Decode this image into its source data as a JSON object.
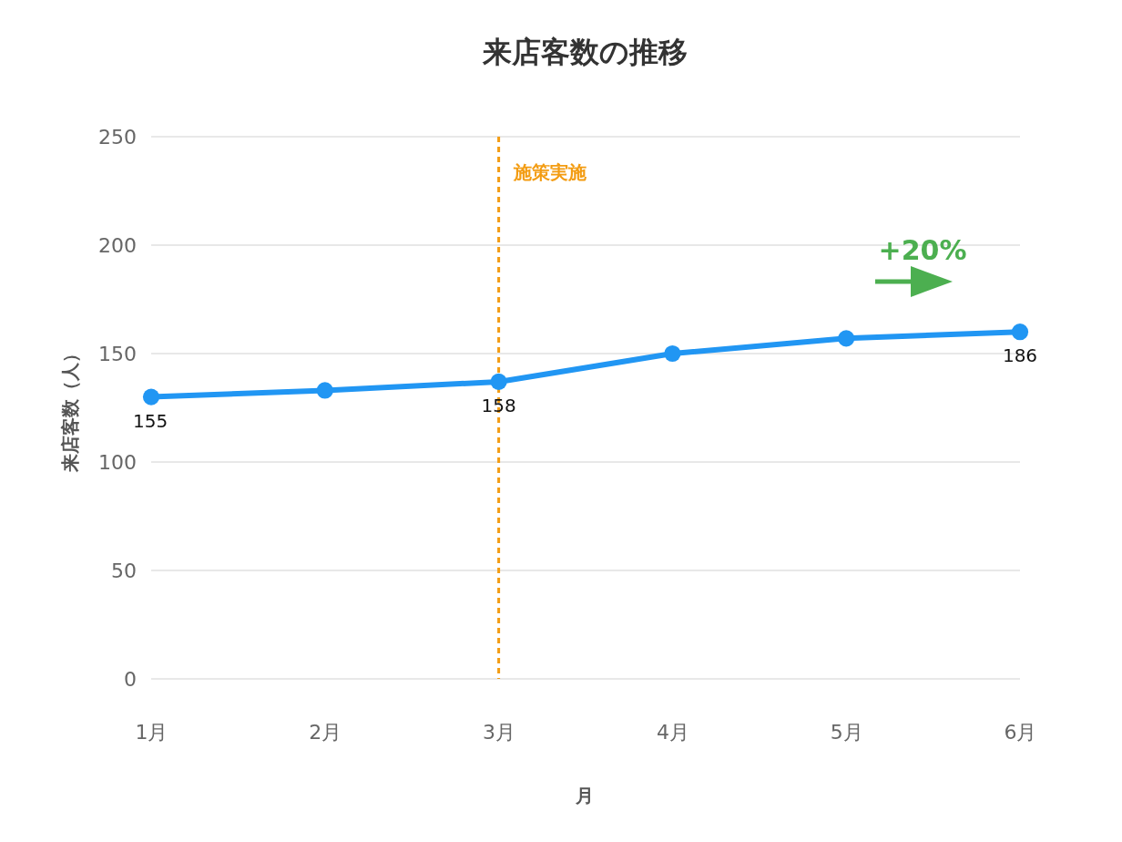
{
  "chart_data": {
    "type": "line",
    "title": "来店客数の推移",
    "xlabel": "月",
    "ylabel": "来店客数（人）",
    "categories": [
      "1月",
      "2月",
      "3月",
      "4月",
      "5月",
      "6月"
    ],
    "series": [
      {
        "color": "#2196f3",
        "values": [
          130,
          133,
          137,
          150,
          157,
          160
        ]
      }
    ],
    "ylim": [
      0,
      250
    ],
    "yticks": [
      0,
      50,
      100,
      150,
      200,
      250
    ],
    "grid": "y",
    "marker": "circle",
    "line_style": "solid",
    "ref_lines": [
      {
        "axis": "x",
        "value": "3月",
        "label": "施策実施",
        "color": "#f39c12",
        "line_style": "dashed"
      }
    ],
    "annotations": [
      {
        "text": "155",
        "x": "1月",
        "y": 130
      },
      {
        "text": "158",
        "x": "3月",
        "y": 137
      },
      {
        "text": "186",
        "x": "6月",
        "y": 160
      },
      "+20%"
    ]
  }
}
